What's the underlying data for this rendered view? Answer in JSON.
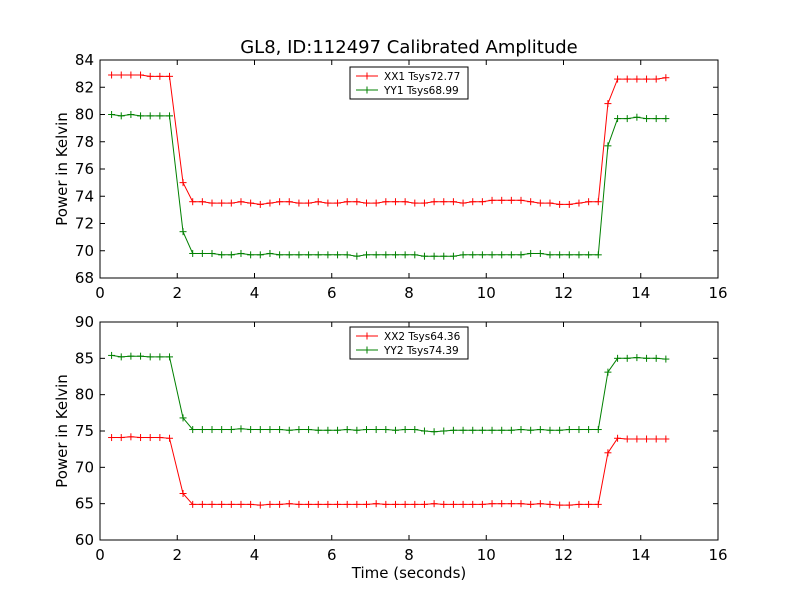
{
  "figure": {
    "title": "GL8, ID:112497 Calibrated Amplitude"
  },
  "chart_data": [
    {
      "type": "line",
      "title": "GL8, ID:112497 Calibrated Amplitude",
      "xlabel": "",
      "ylabel": "Power in Kelvin",
      "xlim": [
        0,
        16
      ],
      "ylim": [
        68,
        84
      ],
      "xticks": [
        "0",
        "2",
        "4",
        "6",
        "8",
        "10",
        "12",
        "14",
        "16"
      ],
      "yticks": [
        "68",
        "70",
        "72",
        "74",
        "76",
        "78",
        "80",
        "82",
        "84"
      ],
      "grid": false,
      "legend_position": "top-center",
      "marker": "+",
      "x": [
        0.3,
        0.55,
        0.8,
        1.05,
        1.3,
        1.55,
        1.8,
        2.15,
        2.4,
        2.65,
        2.9,
        3.15,
        3.4,
        3.65,
        3.9,
        4.15,
        4.4,
        4.65,
        4.9,
        5.15,
        5.4,
        5.65,
        5.9,
        6.15,
        6.4,
        6.65,
        6.9,
        7.15,
        7.4,
        7.65,
        7.9,
        8.15,
        8.4,
        8.65,
        8.9,
        9.15,
        9.4,
        9.65,
        9.9,
        10.15,
        10.4,
        10.65,
        10.9,
        11.15,
        11.4,
        11.65,
        11.9,
        12.15,
        12.4,
        12.65,
        12.9,
        13.15,
        13.4,
        13.65,
        13.9,
        14.15,
        14.4,
        14.65
      ],
      "series": [
        {
          "name": "XX1 Tsys72.77",
          "color": "#ff0000",
          "values": [
            82.9,
            82.9,
            82.9,
            82.9,
            82.8,
            82.8,
            82.8,
            75.0,
            73.6,
            73.6,
            73.5,
            73.5,
            73.5,
            73.6,
            73.5,
            73.4,
            73.5,
            73.6,
            73.6,
            73.5,
            73.5,
            73.6,
            73.5,
            73.5,
            73.6,
            73.6,
            73.5,
            73.5,
            73.6,
            73.6,
            73.6,
            73.5,
            73.5,
            73.6,
            73.6,
            73.6,
            73.5,
            73.6,
            73.6,
            73.7,
            73.7,
            73.7,
            73.7,
            73.6,
            73.5,
            73.5,
            73.4,
            73.4,
            73.5,
            73.6,
            73.6,
            80.8,
            82.6,
            82.6,
            82.6,
            82.6,
            82.6,
            82.7
          ]
        },
        {
          "name": "YY1 Tsys68.99",
          "color": "#008000",
          "values": [
            80.0,
            79.9,
            80.0,
            79.9,
            79.9,
            79.9,
            79.9,
            71.4,
            69.8,
            69.8,
            69.8,
            69.7,
            69.7,
            69.8,
            69.7,
            69.7,
            69.8,
            69.7,
            69.7,
            69.7,
            69.7,
            69.7,
            69.7,
            69.7,
            69.7,
            69.6,
            69.7,
            69.7,
            69.7,
            69.7,
            69.7,
            69.7,
            69.6,
            69.6,
            69.6,
            69.6,
            69.7,
            69.7,
            69.7,
            69.7,
            69.7,
            69.7,
            69.7,
            69.8,
            69.8,
            69.7,
            69.7,
            69.7,
            69.7,
            69.7,
            69.7,
            77.7,
            79.7,
            79.7,
            79.8,
            79.7,
            79.7,
            79.7
          ]
        }
      ]
    },
    {
      "type": "line",
      "title": "",
      "xlabel": "Time (seconds)",
      "ylabel": "Power in Kelvin",
      "xlim": [
        0,
        16
      ],
      "ylim": [
        60,
        90
      ],
      "xticks": [
        "0",
        "2",
        "4",
        "6",
        "8",
        "10",
        "12",
        "14",
        "16"
      ],
      "yticks": [
        "60",
        "65",
        "70",
        "75",
        "80",
        "85",
        "90"
      ],
      "grid": false,
      "legend_position": "top-center",
      "marker": "+",
      "x": [
        0.3,
        0.55,
        0.8,
        1.05,
        1.3,
        1.55,
        1.8,
        2.15,
        2.4,
        2.65,
        2.9,
        3.15,
        3.4,
        3.65,
        3.9,
        4.15,
        4.4,
        4.65,
        4.9,
        5.15,
        5.4,
        5.65,
        5.9,
        6.15,
        6.4,
        6.65,
        6.9,
        7.15,
        7.4,
        7.65,
        7.9,
        8.15,
        8.4,
        8.65,
        8.9,
        9.15,
        9.4,
        9.65,
        9.9,
        10.15,
        10.4,
        10.65,
        10.9,
        11.15,
        11.4,
        11.65,
        11.9,
        12.15,
        12.4,
        12.65,
        12.9,
        13.15,
        13.4,
        13.65,
        13.9,
        14.15,
        14.4,
        14.65
      ],
      "series": [
        {
          "name": "XX2 Tsys64.36",
          "color": "#ff0000",
          "values": [
            74.1,
            74.1,
            74.2,
            74.1,
            74.1,
            74.1,
            74.0,
            66.4,
            64.9,
            64.9,
            64.9,
            64.9,
            64.9,
            64.9,
            64.9,
            64.8,
            64.9,
            64.9,
            65.0,
            64.9,
            64.9,
            64.9,
            64.9,
            64.9,
            64.9,
            64.9,
            64.9,
            65.0,
            64.9,
            64.9,
            64.9,
            64.9,
            64.9,
            65.0,
            64.9,
            64.9,
            64.9,
            64.9,
            64.9,
            65.0,
            65.0,
            65.0,
            65.0,
            64.9,
            65.0,
            64.9,
            64.8,
            64.8,
            64.9,
            64.9,
            64.9,
            72.0,
            74.0,
            73.9,
            73.9,
            73.9,
            73.9,
            73.9
          ]
        },
        {
          "name": "YY2 Tsys74.39",
          "color": "#008000",
          "values": [
            85.4,
            85.2,
            85.3,
            85.3,
            85.2,
            85.2,
            85.2,
            76.8,
            75.2,
            75.2,
            75.2,
            75.2,
            75.2,
            75.3,
            75.2,
            75.2,
            75.2,
            75.2,
            75.1,
            75.2,
            75.2,
            75.1,
            75.1,
            75.1,
            75.2,
            75.1,
            75.2,
            75.2,
            75.2,
            75.1,
            75.2,
            75.2,
            75.0,
            74.9,
            75.0,
            75.1,
            75.1,
            75.1,
            75.1,
            75.1,
            75.1,
            75.1,
            75.2,
            75.1,
            75.2,
            75.1,
            75.1,
            75.2,
            75.2,
            75.2,
            75.2,
            83.1,
            85.0,
            85.0,
            85.1,
            85.0,
            85.0,
            84.9
          ]
        }
      ]
    }
  ]
}
